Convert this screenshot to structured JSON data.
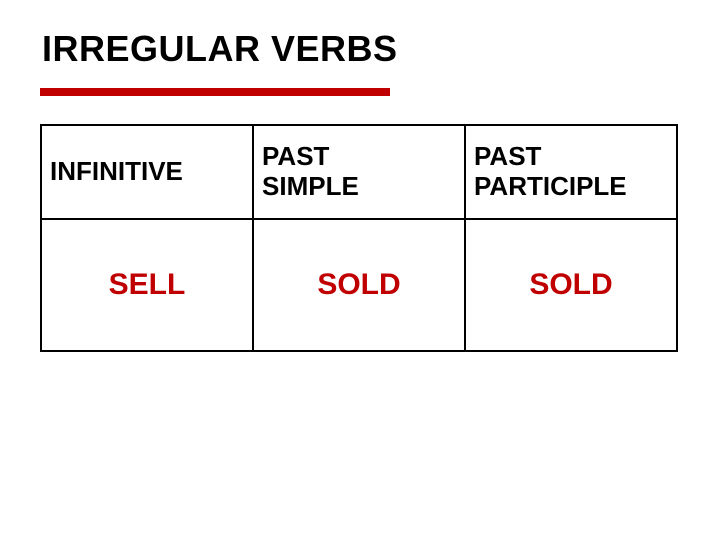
{
  "title": "IRREGULAR VERBS",
  "table": {
    "type": "table",
    "columns": [
      {
        "label": "INFINITIVE",
        "width_pct": 33.3,
        "align": "left"
      },
      {
        "label": "PAST\nSIMPLE",
        "width_pct": 33.3,
        "align": "left"
      },
      {
        "label": "PAST\nPARTICIPLE",
        "width_pct": 33.4,
        "align": "left"
      }
    ],
    "rows": [
      [
        "SELL",
        "SOLD",
        "SOLD"
      ]
    ],
    "header_fontsize": 26,
    "cell_fontsize": 30,
    "header_color": "#000000",
    "cell_color": "#c00000",
    "border_color": "#000000",
    "border_width": 2,
    "background_color": "#ffffff"
  },
  "styles": {
    "title_color": "#000000",
    "title_fontsize": 36,
    "rule_color": "#c00000",
    "rule_height": 8,
    "rule_width": 350,
    "font_family": "Verdana"
  }
}
